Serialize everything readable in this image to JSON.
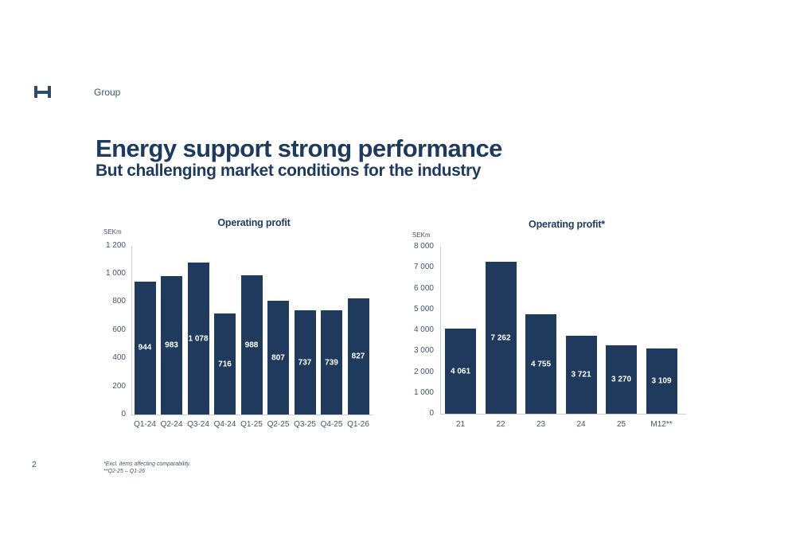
{
  "page": {
    "logo_icon": "holmen-h-mark",
    "header_label": "Group",
    "title": "Energy support strong performance",
    "subtitle": "But challenging market conditions for the industry",
    "page_number": "2",
    "footnote_line1": "*Excl. items affecting comparability.",
    "footnote_line2": "**Q2-25 – Q1-26"
  },
  "colors": {
    "bar_fill": "#1F3A5C",
    "title_text": "#1E3A5F",
    "axis_text": "#44546A",
    "axis_line": "#C9CFD8",
    "bar_label_text": "#FFFFFF",
    "background": "#FFFFFF"
  },
  "chart_data": [
    {
      "type": "bar",
      "title": "Operating profit",
      "unit_label": "SEKm",
      "categories": [
        "Q1-24",
        "Q2-24",
        "Q3-24",
        "Q4-24",
        "Q1-25",
        "Q2-25",
        "Q3-25",
        "Q4-25",
        "Q1-26"
      ],
      "values": [
        944,
        983,
        1078,
        716,
        988,
        807,
        737,
        739,
        827
      ],
      "value_labels": [
        "944",
        "983",
        "1 078",
        "716",
        "988",
        "807",
        "737",
        "739",
        "827"
      ],
      "ylim": [
        0,
        1200
      ],
      "ytick_labels": [
        "1 200",
        "1 000",
        "800",
        "600",
        "400",
        "200",
        "0"
      ],
      "grid": false,
      "legend": false,
      "bar_color": "#1F3A5C"
    },
    {
      "type": "bar",
      "title": "Operating profit*",
      "unit_label": "SEKm",
      "categories": [
        "21",
        "22",
        "23",
        "24",
        "25",
        "M12**"
      ],
      "values": [
        4061,
        7262,
        4755,
        3721,
        3270,
        3109
      ],
      "value_labels": [
        "4 061",
        "7 262",
        "4 755",
        "3 721",
        "3 270",
        "3 109"
      ],
      "ylim": [
        0,
        8000
      ],
      "ytick_labels": [
        "8 000",
        "7 000",
        "6 000",
        "5 000",
        "4 000",
        "3 000",
        "2 000",
        "1 000",
        "0"
      ],
      "grid": false,
      "legend": false,
      "bar_color": "#1F3A5C"
    }
  ]
}
